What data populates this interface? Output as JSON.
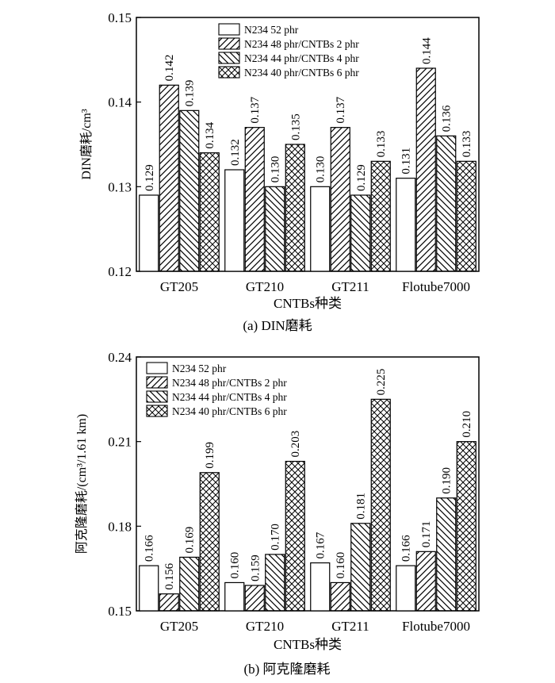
{
  "chart_data": [
    {
      "type": "bar",
      "caption": "(a) DIN磨耗",
      "xlabel": "CNTBs种类",
      "ylabel": "DIN磨耗/cm³",
      "ylim": [
        0.12,
        0.15
      ],
      "yticks": [
        "0.12",
        "0.13",
        "0.14",
        "0.15"
      ],
      "categories": [
        "GT205",
        "GT210",
        "GT211",
        "Flotube7000"
      ],
      "legend_position": "top-right",
      "series": [
        {
          "name": "N234 52 phr",
          "pattern": "blank",
          "values": [
            0.129,
            0.132,
            0.13,
            0.131
          ],
          "labels": [
            "0.129",
            "0.132",
            "0.130",
            "0.131"
          ]
        },
        {
          "name": "N234 48 phr/CNTBs 2 phr",
          "pattern": "diagonal-up",
          "values": [
            0.142,
            0.137,
            0.137,
            0.144
          ],
          "labels": [
            "0.142",
            "0.137",
            "0.137",
            "0.144"
          ]
        },
        {
          "name": "N234 44 phr/CNTBs 4 phr",
          "pattern": "diagonal-down",
          "values": [
            0.139,
            0.13,
            0.129,
            0.136
          ],
          "labels": [
            "0.139",
            "0.130",
            "0.129",
            "0.136"
          ]
        },
        {
          "name": "N234 40 phr/CNTBs 6 phr",
          "pattern": "crosshatch",
          "values": [
            0.134,
            0.135,
            0.133,
            0.133
          ],
          "labels": [
            "0.134",
            "0.135",
            "0.133",
            "0.133"
          ]
        }
      ]
    },
    {
      "type": "bar",
      "caption": "(b) 阿克隆磨耗",
      "xlabel": "CNTBs种类",
      "ylabel": "阿克隆磨耗/(cm³/1.61 km)",
      "ylim": [
        0.15,
        0.24
      ],
      "yticks": [
        "0.15",
        "0.18",
        "0.21",
        "0.24"
      ],
      "categories": [
        "GT205",
        "GT210",
        "GT211",
        "Flotube7000"
      ],
      "legend_position": "top-left",
      "series": [
        {
          "name": "N234 52 phr",
          "pattern": "blank",
          "values": [
            0.166,
            0.16,
            0.167,
            0.166
          ],
          "labels": [
            "0.166",
            "0.160",
            "0.167",
            "0.166"
          ]
        },
        {
          "name": "N234 48 phr/CNTBs 2 phr",
          "pattern": "diagonal-up",
          "values": [
            0.156,
            0.159,
            0.16,
            0.171
          ],
          "labels": [
            "0.156",
            "0.159",
            "0.160",
            "0.171"
          ]
        },
        {
          "name": "N234 44 phr/CNTBs 4 phr",
          "pattern": "diagonal-down",
          "values": [
            0.169,
            0.17,
            0.181,
            0.19
          ],
          "labels": [
            "0.169",
            "0.170",
            "0.181",
            "0.190"
          ]
        },
        {
          "name": "N234 40 phr/CNTBs 6 phr",
          "pattern": "crosshatch",
          "values": [
            0.199,
            0.203,
            0.225,
            0.21
          ],
          "labels": [
            "0.199",
            "0.203",
            "0.225",
            "0.210"
          ]
        }
      ]
    }
  ]
}
